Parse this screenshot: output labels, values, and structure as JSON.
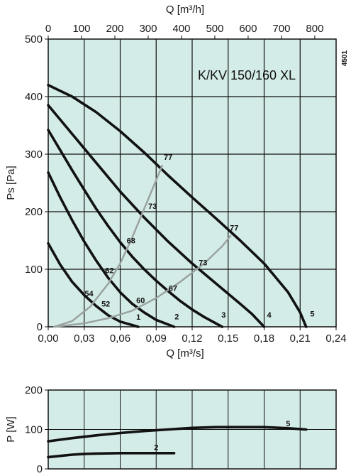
{
  "chart_data": [
    {
      "type": "line",
      "title": "K/KV 150/160 XL",
      "code": "4501",
      "xlabel": "Q [m³/s]",
      "x2label": "Q [m³/h]",
      "ylabel": "Ps [Pa]",
      "xlim": [
        0,
        0.24
      ],
      "ylim": [
        0,
        500
      ],
      "x2lim": [
        0,
        864
      ],
      "xticks": [
        "0,00",
        "0,03",
        "0,06",
        "0,09",
        "0,12",
        "0,15",
        "0,18",
        "0,21",
        "0,24"
      ],
      "yticks": [
        "0",
        "100",
        "200",
        "300",
        "400",
        "500"
      ],
      "x2ticks": [
        "0",
        "100",
        "200",
        "300",
        "400",
        "500",
        "600",
        "700",
        "800"
      ],
      "grid": true,
      "series": [
        {
          "name": "1",
          "label_at": [
            0.071,
            17
          ],
          "x": [
            0,
            0.01,
            0.02,
            0.03,
            0.04,
            0.05,
            0.06,
            0.075
          ],
          "y": [
            145,
            108,
            78,
            55,
            36,
            20,
            9,
            0
          ]
        },
        {
          "name": "2",
          "label_at": [
            0.103,
            18
          ],
          "x": [
            0,
            0.01,
            0.02,
            0.03,
            0.04,
            0.05,
            0.06,
            0.07,
            0.08,
            0.09,
            0.105
          ],
          "y": [
            268,
            225,
            185,
            148,
            115,
            85,
            60,
            40,
            25,
            12,
            0
          ]
        },
        {
          "name": "3",
          "label_at": [
            0.142,
            21
          ],
          "x": [
            0,
            0.01,
            0.02,
            0.03,
            0.04,
            0.05,
            0.06,
            0.07,
            0.08,
            0.09,
            0.1,
            0.11,
            0.12,
            0.13,
            0.145
          ],
          "y": [
            342,
            307,
            272,
            238,
            205,
            175,
            147,
            122,
            100,
            80,
            62,
            45,
            30,
            17,
            0
          ]
        },
        {
          "name": "4",
          "label_at": [
            0.18,
            21
          ],
          "x": [
            0,
            0.02,
            0.04,
            0.06,
            0.08,
            0.1,
            0.12,
            0.14,
            0.16,
            0.17,
            0.18
          ],
          "y": [
            385,
            335,
            285,
            235,
            190,
            148,
            110,
            75,
            40,
            22,
            0
          ]
        },
        {
          "name": "5",
          "label_at": [
            0.216,
            23
          ],
          "x": [
            0,
            0.02,
            0.04,
            0.06,
            0.08,
            0.1,
            0.12,
            0.14,
            0.16,
            0.18,
            0.2,
            0.21,
            0.215
          ],
          "y": [
            420,
            400,
            373,
            340,
            303,
            263,
            225,
            188,
            150,
            110,
            60,
            25,
            0
          ]
        },
        {
          "name": "efficiency-inner",
          "style": "gray",
          "x": [
            0.005,
            0.02,
            0.035,
            0.05,
            0.06,
            0.07,
            0.08,
            0.09,
            0.095
          ],
          "y": [
            0,
            10,
            35,
            75,
            110,
            155,
            205,
            255,
            280
          ],
          "labels": [
            {
              "text": "54",
              "at": [
                0.034,
                58
              ]
            },
            {
              "text": "62",
              "at": [
                0.051,
                98
              ]
            },
            {
              "text": "68",
              "at": [
                0.069,
                150
              ]
            },
            {
              "text": "73",
              "at": [
                0.087,
                210
              ]
            },
            {
              "text": "77",
              "at": [
                0.1,
                295
              ]
            }
          ]
        },
        {
          "name": "efficiency-outer",
          "style": "gray",
          "x": [
            0.005,
            0.03,
            0.05,
            0.07,
            0.09,
            0.11,
            0.13,
            0.145,
            0.152
          ],
          "y": [
            0,
            6,
            15,
            28,
            50,
            78,
            110,
            140,
            158
          ],
          "labels": [
            {
              "text": "52",
              "at": [
                0.048,
                40
              ]
            },
            {
              "text": "60",
              "at": [
                0.077,
                46
              ]
            },
            {
              "text": "67",
              "at": [
                0.104,
                67
              ]
            },
            {
              "text": "73",
              "at": [
                0.129,
                112
              ]
            },
            {
              "text": "77",
              "at": [
                0.155,
                172
              ]
            }
          ]
        }
      ]
    },
    {
      "type": "line",
      "xlabel": "",
      "ylabel": "P [W]",
      "xlim": [
        0,
        0.24
      ],
      "ylim": [
        0,
        200
      ],
      "yticks": [
        "0",
        "100",
        "200"
      ],
      "grid": true,
      "series": [
        {
          "name": "5",
          "label_at": [
            0.2,
            115
          ],
          "x": [
            0,
            0.02,
            0.04,
            0.06,
            0.08,
            0.1,
            0.12,
            0.14,
            0.16,
            0.18,
            0.2,
            0.215
          ],
          "y": [
            70,
            78,
            85,
            91,
            96,
            100,
            104,
            106,
            106,
            106,
            103,
            100
          ]
        },
        {
          "name": "2",
          "label_at": [
            0.09,
            55
          ],
          "x": [
            0,
            0.01,
            0.02,
            0.03,
            0.04,
            0.06,
            0.08,
            0.1,
            0.105
          ],
          "y": [
            30,
            33,
            36,
            38,
            39,
            40,
            40,
            40,
            40
          ]
        }
      ]
    }
  ]
}
